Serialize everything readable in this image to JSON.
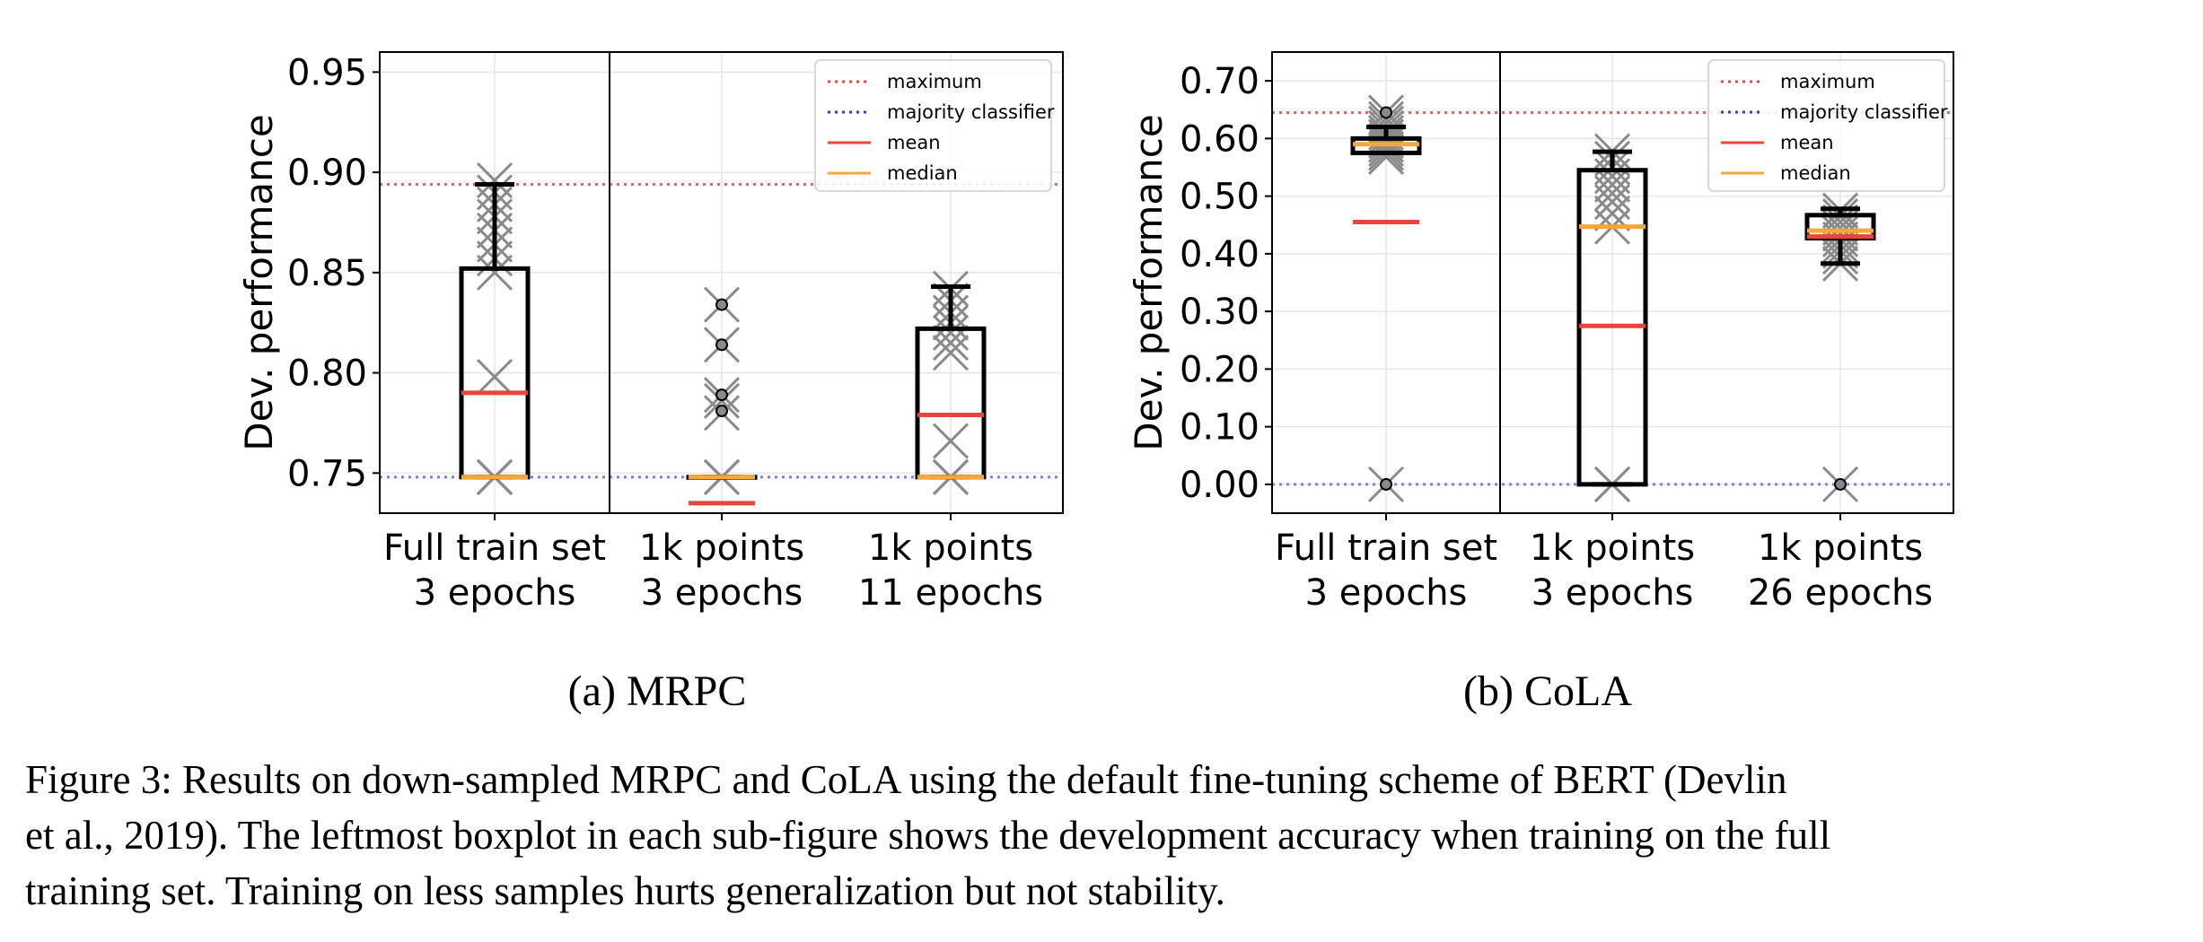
{
  "chart_data": [
    {
      "type": "box",
      "subcaption": "(a) MRPC",
      "ylabel": "Dev.  performance",
      "ylim": [
        0.73,
        0.96
      ],
      "yticks": [
        "0.75",
        "0.80",
        "0.85",
        "0.90",
        "0.95"
      ],
      "categories": [
        [
          "Full train set",
          "3 epochs"
        ],
        [
          "1k points",
          "3 epochs"
        ],
        [
          "1k points",
          "11 epochs"
        ]
      ],
      "reference_lines": [
        {
          "name": "maximum",
          "value": 0.894,
          "color": "#e8625e",
          "style": "dotted"
        },
        {
          "name": "majority classifier",
          "value": 0.748,
          "color": "#7b7fe8",
          "style": "dotted"
        }
      ],
      "legend": {
        "position": "top-right",
        "entries": [
          {
            "label": "maximum",
            "color": "#e8453c",
            "style": "dotted"
          },
          {
            "label": "majority classifier",
            "color": "#2b3bd8",
            "style": "dotted"
          },
          {
            "label": "mean",
            "color": "#e8453c",
            "style": "solid"
          },
          {
            "label": "median",
            "color": "#f2a93b",
            "style": "solid"
          }
        ]
      },
      "boxes": [
        {
          "q1": 0.748,
          "median": 0.748,
          "q3": 0.852,
          "whisker_low": 0.748,
          "whisker_high": 0.894,
          "mean": 0.79,
          "points": [
            0.748,
            0.748,
            0.748,
            0.748,
            0.748,
            0.798,
            0.85,
            0.857,
            0.864,
            0.871,
            0.878,
            0.884,
            0.89,
            0.896
          ],
          "outliers": []
        },
        {
          "q1": 0.748,
          "median": 0.748,
          "q3": 0.748,
          "whisker_low": 0.748,
          "whisker_high": 0.748,
          "mean": 0.735,
          "points": [
            0.748,
            0.748,
            0.748,
            0.748,
            0.78,
            0.786,
            0.789,
            0.814,
            0.834
          ],
          "outliers": [
            0.781,
            0.789,
            0.814,
            0.834
          ]
        },
        {
          "q1": 0.748,
          "median": 0.748,
          "q3": 0.822,
          "whisker_low": 0.748,
          "whisker_high": 0.843,
          "mean": 0.779,
          "points": [
            0.748,
            0.748,
            0.748,
            0.766,
            0.81,
            0.815,
            0.82,
            0.825,
            0.83,
            0.836,
            0.842
          ],
          "outliers": []
        }
      ]
    },
    {
      "type": "box",
      "subcaption": "(b) CoLA",
      "ylabel": "Dev.  performance",
      "ylim": [
        -0.05,
        0.75
      ],
      "yticks": [
        "0.00",
        "0.10",
        "0.20",
        "0.30",
        "0.40",
        "0.50",
        "0.60",
        "0.70"
      ],
      "categories": [
        [
          "Full train set",
          "3 epochs"
        ],
        [
          "1k points",
          "3 epochs"
        ],
        [
          "1k points",
          "26 epochs"
        ]
      ],
      "reference_lines": [
        {
          "name": "maximum",
          "value": 0.645,
          "color": "#e8625e",
          "style": "dotted"
        },
        {
          "name": "majority classifier",
          "value": 0.0,
          "color": "#7b7fe8",
          "style": "dotted"
        }
      ],
      "legend": {
        "position": "top-right",
        "entries": [
          {
            "label": "maximum",
            "color": "#e8453c",
            "style": "dotted"
          },
          {
            "label": "majority classifier",
            "color": "#2b3bd8",
            "style": "dotted"
          },
          {
            "label": "mean",
            "color": "#e8453c",
            "style": "solid"
          },
          {
            "label": "median",
            "color": "#f2a93b",
            "style": "solid"
          }
        ]
      },
      "boxes": [
        {
          "q1": 0.575,
          "median": 0.59,
          "q3": 0.6,
          "whisker_low": 0.575,
          "whisker_high": 0.62,
          "mean": 0.455,
          "points": [
            0.0,
            0.568,
            0.575,
            0.582,
            0.589,
            0.596,
            0.603,
            0.61,
            0.618,
            0.626,
            0.634,
            0.645
          ],
          "outliers": [
            0.0,
            0.645
          ]
        },
        {
          "q1": 0.0,
          "median": 0.447,
          "q3": 0.545,
          "whisker_low": 0.0,
          "whisker_high": 0.577,
          "mean": 0.275,
          "points": [
            0.0,
            0.0,
            0.0,
            0.447,
            0.47,
            0.49,
            0.505,
            0.52,
            0.535,
            0.55,
            0.565,
            0.578
          ],
          "outliers": []
        },
        {
          "q1": 0.427,
          "median": 0.44,
          "q3": 0.467,
          "whisker_low": 0.383,
          "whisker_high": 0.478,
          "mean": 0.43,
          "points": [
            0.0,
            0.383,
            0.395,
            0.405,
            0.415,
            0.425,
            0.435,
            0.445,
            0.455,
            0.465,
            0.475
          ],
          "outliers": [
            0.0
          ]
        }
      ]
    }
  ],
  "caption": {
    "lines": [
      "Figure 3: Results on down-sampled MRPC and CoLA using the default fine-tuning scheme of BERT (Devlin",
      "et al., 2019). The leftmost boxplot in each sub-figure shows the development accuracy when training on the full",
      "training set. Training on less samples hurts generalization but not stability."
    ]
  }
}
